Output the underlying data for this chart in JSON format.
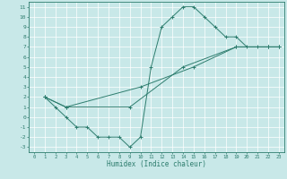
{
  "xlabel": "Humidex (Indice chaleur)",
  "xlim": [
    -0.5,
    23.5
  ],
  "ylim": [
    -3.5,
    11.5
  ],
  "xticks": [
    0,
    1,
    2,
    3,
    4,
    5,
    6,
    7,
    8,
    9,
    10,
    11,
    12,
    13,
    14,
    15,
    16,
    17,
    18,
    19,
    20,
    21,
    22,
    23
  ],
  "yticks": [
    -3,
    -2,
    -1,
    0,
    1,
    2,
    3,
    4,
    5,
    6,
    7,
    8,
    9,
    10,
    11
  ],
  "line_color": "#2e7d6e",
  "bg_color": "#c8e8e8",
  "grid_color": "#b0d8d8",
  "line1_x": [
    1,
    2,
    3,
    4,
    5,
    6,
    7,
    8,
    9,
    10,
    11,
    12,
    13,
    14,
    15,
    16,
    17,
    18,
    19,
    20,
    21,
    22,
    23
  ],
  "line1_y": [
    2,
    1,
    0,
    -1,
    -1,
    -2,
    -2,
    -2,
    -3,
    -2,
    5,
    9,
    10,
    11,
    11,
    10,
    9,
    8,
    8,
    7,
    7,
    7,
    7
  ],
  "line2_x": [
    1,
    3,
    9,
    14,
    19,
    22,
    23
  ],
  "line2_y": [
    2,
    1,
    1,
    5,
    7,
    7,
    7
  ],
  "line3_x": [
    1,
    3,
    10,
    15,
    19,
    22,
    23
  ],
  "line3_y": [
    2,
    1,
    3,
    5,
    7,
    7,
    7
  ]
}
